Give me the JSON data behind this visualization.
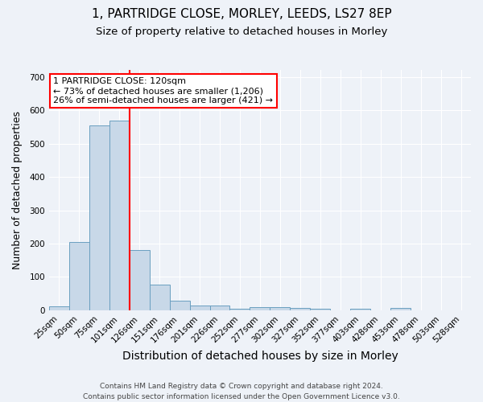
{
  "title1": "1, PARTRIDGE CLOSE, MORLEY, LEEDS, LS27 8EP",
  "title2": "Size of property relative to detached houses in Morley",
  "xlabel": "Distribution of detached houses by size in Morley",
  "ylabel": "Number of detached properties",
  "categories": [
    "25sqm",
    "50sqm",
    "75sqm",
    "101sqm",
    "126sqm",
    "151sqm",
    "176sqm",
    "201sqm",
    "226sqm",
    "252sqm",
    "277sqm",
    "302sqm",
    "327sqm",
    "352sqm",
    "377sqm",
    "403sqm",
    "428sqm",
    "453sqm",
    "478sqm",
    "503sqm",
    "528sqm"
  ],
  "values": [
    12,
    205,
    555,
    570,
    180,
    78,
    30,
    14,
    14,
    5,
    10,
    10,
    8,
    5,
    0,
    5,
    0,
    7,
    0,
    0,
    0
  ],
  "bar_color": "#c8d8e8",
  "bar_edge_color": "#6a9fc0",
  "vline_x_index": 4,
  "vline_color": "red",
  "annotation_text": "1 PARTRIDGE CLOSE: 120sqm\n← 73% of detached houses are smaller (1,206)\n26% of semi-detached houses are larger (421) →",
  "annotation_box_color": "white",
  "annotation_box_edge_color": "red",
  "footer": "Contains HM Land Registry data © Crown copyright and database right 2024.\nContains public sector information licensed under the Open Government Licence v3.0.",
  "ylim": [
    0,
    720
  ],
  "yticks": [
    0,
    100,
    200,
    300,
    400,
    500,
    600,
    700
  ],
  "bg_color": "#eef2f8",
  "grid_color": "white",
  "title1_fontsize": 11,
  "title2_fontsize": 9.5,
  "xlabel_fontsize": 10,
  "ylabel_fontsize": 9,
  "tick_fontsize": 7.5,
  "annotation_fontsize": 8,
  "footer_fontsize": 6.5
}
